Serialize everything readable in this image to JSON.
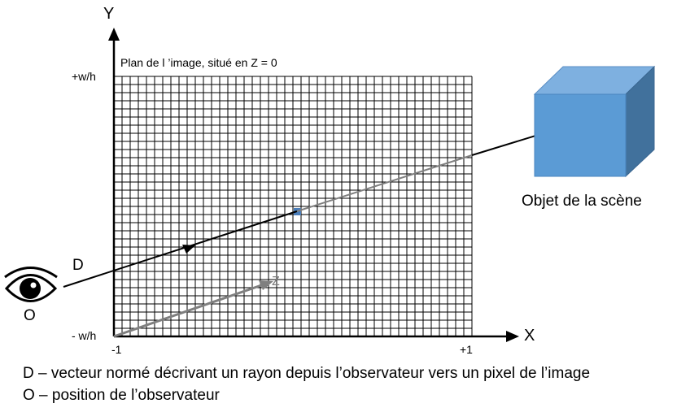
{
  "axes": {
    "y_name": "Y",
    "x_name": "X",
    "z_name": "Z",
    "y_top_tick": "+w/h",
    "y_bottom_tick": "- w/h",
    "x_left_tick": "-1",
    "x_right_tick": "+1"
  },
  "plane_caption": "Plan de l ’image, situé en Z = 0",
  "object_caption": "Objet de la scène",
  "ray_label": "D",
  "observer_label": "O",
  "legend": {
    "line_d": "D – vecteur normé décrivant un rayon depuis l’observateur vers un pixel de l’image",
    "line_o": "O – position de l’observateur"
  },
  "grid": {
    "columns": 44,
    "rows": 32
  },
  "icons": {
    "observer": "eye-icon",
    "scene_object": "cube-icon"
  },
  "colors": {
    "grid_line": "#000000",
    "axis": "#000000",
    "ray_outside": "#000000",
    "ray_behind_plane": "#7f7f7f",
    "z_axis": "#7f7f7f",
    "hit_pixel": "#4a7ebb",
    "cube_front": "#5b9bd5",
    "cube_top": "#7eb0e0",
    "cube_side": "#41719c"
  }
}
